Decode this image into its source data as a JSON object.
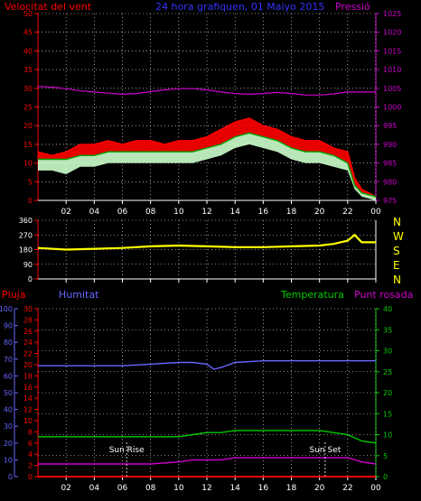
{
  "header": {
    "wind_label": "Velocitat del vent",
    "title": "24 hora grafiquen, 01 Maiyo 2015",
    "pressure_label": "Pressió"
  },
  "compass": [
    "N",
    "W",
    "S",
    "E",
    "N"
  ],
  "bottom_labels": {
    "rain": "Pluja",
    "humidity": "Humitat",
    "temperature": "Temperatura",
    "dewpoint": "Punt rosada",
    "sunrise": "Sun Rise",
    "sunset": "Sun Set"
  },
  "x_ticks": [
    "02",
    "04",
    "06",
    "08",
    "10",
    "12",
    "14",
    "16",
    "18",
    "20",
    "22",
    "00"
  ],
  "colors": {
    "wind_speed": "#ff0000",
    "wind_avg": "#00aa00",
    "wind_low": "#ccffcc",
    "pressure": "#cc00cc",
    "direction": "#ffff00",
    "humidity": "#6666ff",
    "temperature": "#00cc00",
    "dewpoint": "#cc00cc",
    "rain": "#ff0000"
  },
  "chart_data": [
    {
      "type": "line",
      "name": "wind",
      "title": "24 hora grafiquen, 01 Maiyo 2015",
      "y_left_ticks": [
        0,
        5,
        10,
        15,
        20,
        25,
        30,
        35,
        40,
        45,
        50
      ],
      "y_right_ticks": [
        975,
        980,
        985,
        990,
        995,
        1000,
        1005,
        1010,
        1015,
        1020,
        1025
      ],
      "ylim_left": [
        0,
        50
      ],
      "ylim_right": [
        975,
        1025
      ],
      "x_hours": [
        0,
        1,
        2,
        3,
        4,
        5,
        6,
        7,
        8,
        9,
        10,
        11,
        12,
        13,
        14,
        15,
        16,
        17,
        18,
        19,
        20,
        21,
        22,
        22.5,
        23,
        24
      ],
      "series": [
        {
          "key": "wind_speed",
          "values": [
            13,
            12,
            13,
            15,
            15,
            16,
            15,
            16,
            16,
            15,
            16,
            16,
            17,
            19,
            21,
            22,
            20,
            19,
            17,
            16,
            16,
            14,
            13,
            6,
            3,
            1
          ]
        },
        {
          "key": "wind_avg",
          "values": [
            11,
            11,
            11,
            12,
            12,
            13,
            13,
            13,
            13,
            13,
            13,
            13,
            14,
            15,
            17,
            18,
            17,
            16,
            14,
            13,
            13,
            12,
            10,
            4,
            2,
            1
          ]
        },
        {
          "key": "wind_low",
          "values": [
            8,
            8,
            7,
            9,
            9,
            10,
            10,
            10,
            10,
            10,
            10,
            10,
            11,
            12,
            14,
            15,
            14,
            13,
            11,
            10,
            10,
            9,
            8,
            3,
            1,
            0
          ]
        },
        {
          "key": "pressure",
          "values": [
            1005.5,
            1005.3,
            1004.9,
            1004.3,
            1004.0,
            1003.7,
            1003.4,
            1003.6,
            1004.1,
            1004.6,
            1004.9,
            1004.9,
            1004.6,
            1004.0,
            1003.6,
            1003.4,
            1003.6,
            1003.9,
            1003.6,
            1003.2,
            1003.2,
            1003.5,
            1004.0,
            1004.0,
            1004.0,
            1004.0
          ]
        }
      ]
    },
    {
      "type": "line",
      "name": "wind_direction",
      "y_ticks": [
        0,
        90,
        180,
        270,
        360
      ],
      "ylim": [
        0,
        360
      ],
      "x_hours": [
        0,
        2,
        4,
        6,
        8,
        10,
        12,
        14,
        16,
        18,
        20,
        21,
        22,
        22.5,
        23,
        24
      ],
      "series": [
        {
          "key": "direction",
          "values": [
            190,
            180,
            185,
            190,
            200,
            205,
            200,
            195,
            195,
            200,
            205,
            215,
            235,
            270,
            225,
            225
          ]
        }
      ]
    },
    {
      "type": "line",
      "name": "humidity_temperature",
      "y_left_outer_ticks": [
        0,
        10,
        20,
        30,
        40,
        50,
        60,
        70,
        80,
        90,
        100
      ],
      "y_left_inner_ticks": [
        0,
        2,
        4,
        6,
        8,
        10,
        12,
        14,
        16,
        18,
        20,
        22,
        24,
        26,
        28,
        30
      ],
      "y_right_ticks": [
        0,
        5,
        10,
        15,
        20,
        25,
        30,
        35,
        40
      ],
      "ylim_left_outer": [
        0,
        100
      ],
      "ylim_left_inner": [
        0,
        30
      ],
      "ylim_right": [
        0,
        40
      ],
      "x_hours": [
        0,
        2,
        4,
        6,
        8,
        10,
        11,
        12,
        12.5,
        13,
        14,
        16,
        18,
        20,
        22,
        23,
        24
      ],
      "series": [
        {
          "key": "humidity",
          "axis": "left_outer",
          "values": [
            66,
            66,
            66,
            66,
            67,
            68,
            68,
            67,
            64,
            65,
            68,
            69,
            69,
            69,
            69,
            69,
            69
          ]
        },
        {
          "key": "temperature",
          "axis": "right",
          "values": [
            9.5,
            9.5,
            9.5,
            9.5,
            9.5,
            9.5,
            10.0,
            10.5,
            10.5,
            10.5,
            11.0,
            11.0,
            11.0,
            11.0,
            10.0,
            8.5,
            8.0
          ]
        },
        {
          "key": "dewpoint",
          "axis": "right",
          "values": [
            3.0,
            3.0,
            3.0,
            3.0,
            3.0,
            3.5,
            4.0,
            4.0,
            4.0,
            4.0,
            4.5,
            4.5,
            4.5,
            4.5,
            4.5,
            3.5,
            3.0
          ]
        },
        {
          "key": "rain",
          "axis": "left_inner",
          "values": [
            0,
            0,
            0,
            0,
            0,
            0,
            0,
            0,
            0,
            0,
            0,
            0,
            0,
            0,
            0,
            0,
            0
          ]
        }
      ],
      "annotations": [
        {
          "text": "Sun Rise",
          "x_hour": 6.3
        },
        {
          "text": "Sun Set",
          "x_hour": 20.4
        }
      ]
    }
  ]
}
